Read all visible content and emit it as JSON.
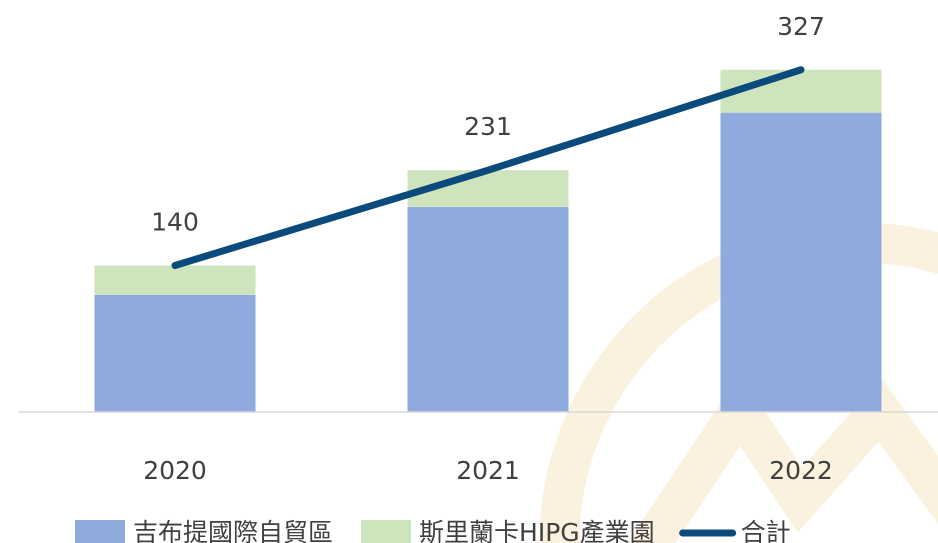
{
  "chart_data": {
    "type": "bar",
    "stacked": true,
    "categories": [
      "2020",
      "2021",
      "2022"
    ],
    "series": [
      {
        "name": "吉布提國際自貿區",
        "color": "#8faadc",
        "values": [
          112,
          196,
          286
        ]
      },
      {
        "name": "斯里蘭卡HIPG產業園",
        "color": "#cde4bd",
        "values": [
          28,
          35,
          41
        ]
      },
      {
        "name": "合計",
        "color": "#0b4a7d",
        "type": "line",
        "values": [
          140,
          231,
          327
        ]
      }
    ],
    "ylim": [
      0,
      365
    ],
    "legend": "bottom"
  }
}
